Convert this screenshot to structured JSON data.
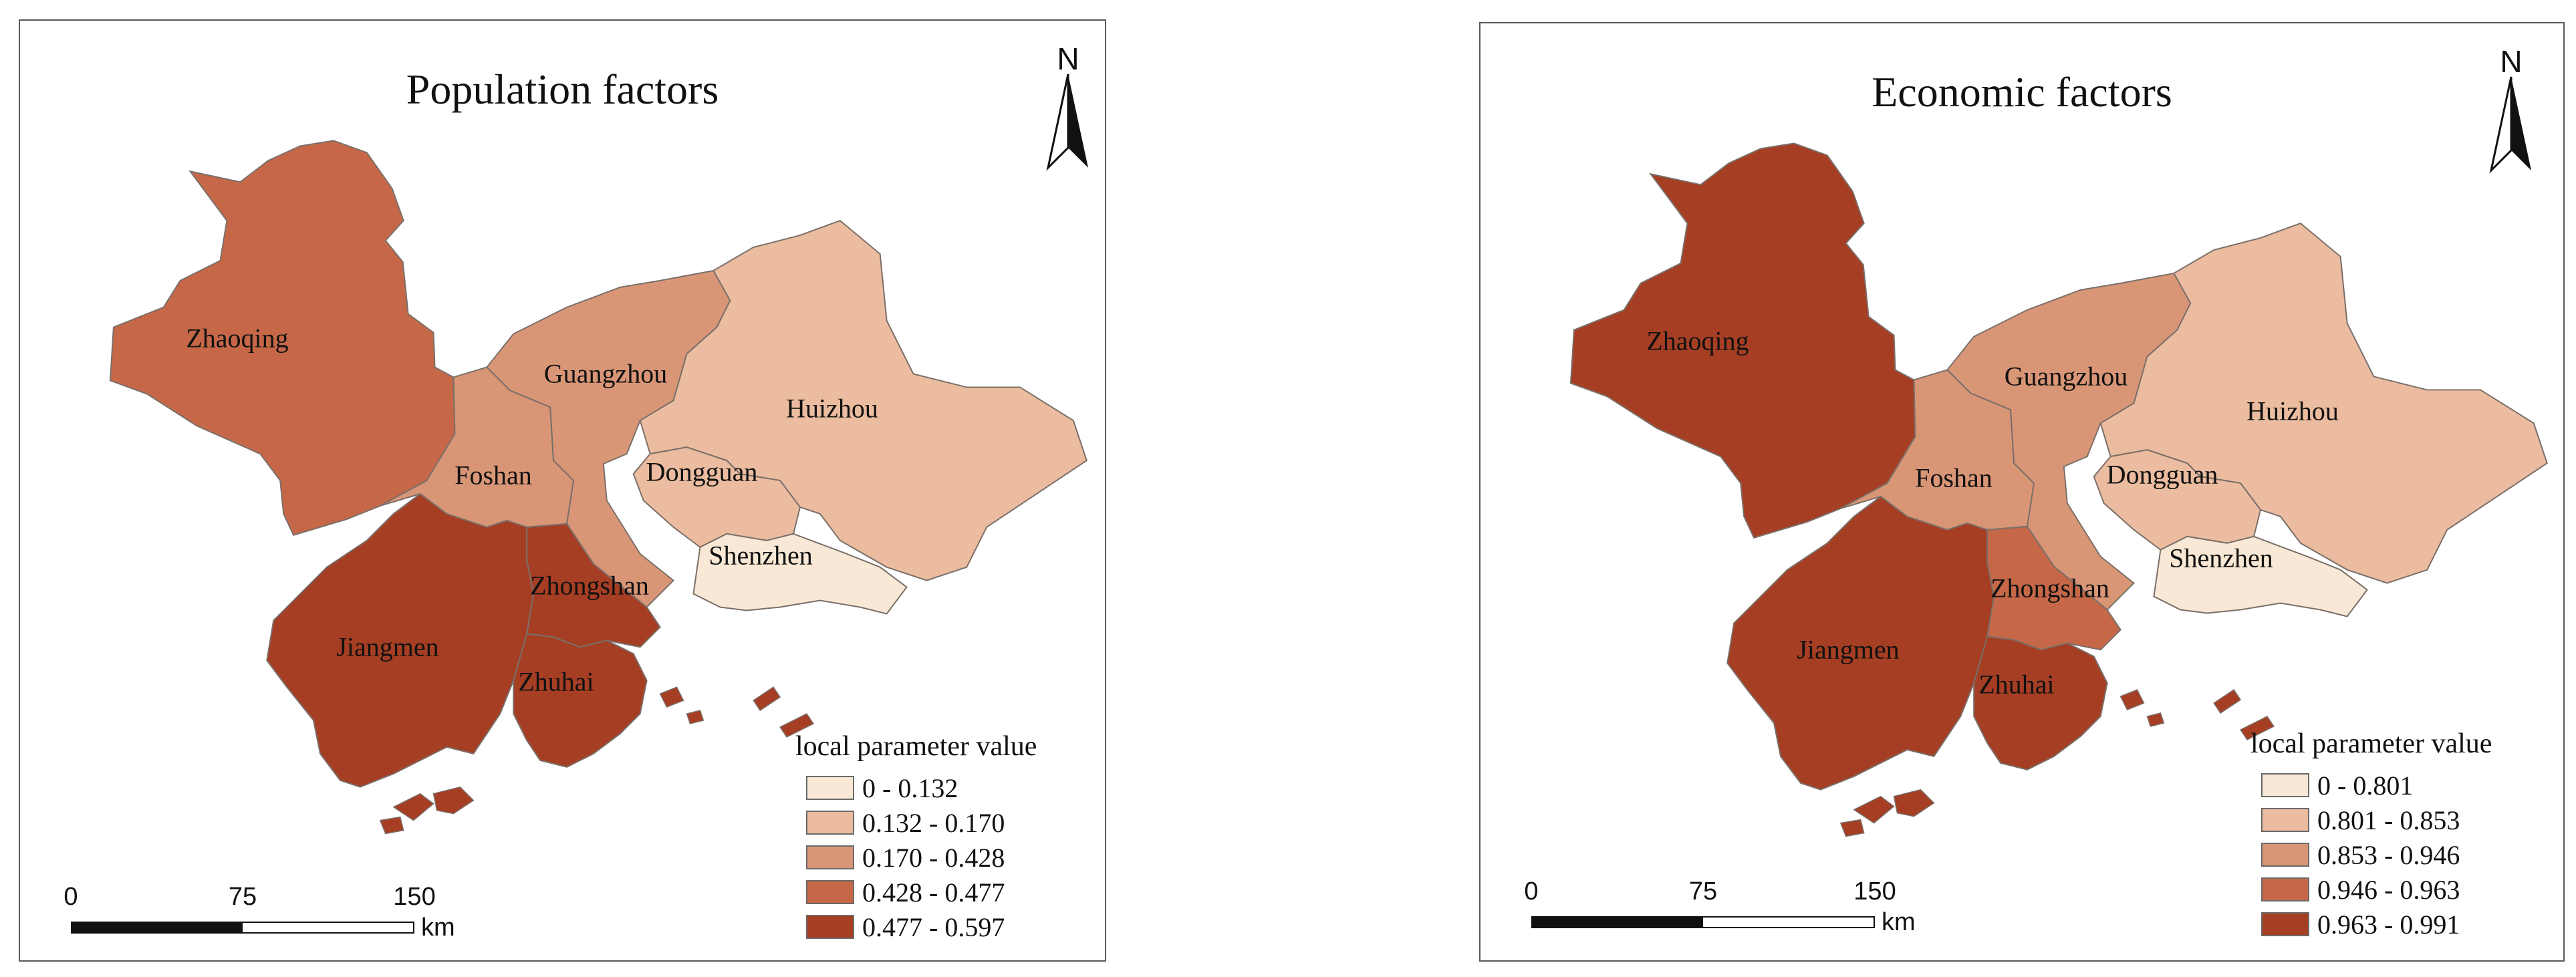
{
  "maps": [
    {
      "id": "left",
      "title": "Population factors",
      "north_label": "N",
      "legend": {
        "title": "local parameter value",
        "classes": [
          {
            "label": "0 - 0.132",
            "color": "#f8e8d5"
          },
          {
            "label": "0.132 - 0.170",
            "color": "#ebbc9f"
          },
          {
            "label": "0.170 - 0.428",
            "color": "#d99676"
          },
          {
            "label": "0.428 - 0.477",
            "color": "#c66848"
          },
          {
            "label": "0.477 - 0.597",
            "color": "#a63e24"
          }
        ]
      },
      "scale": {
        "ticks": [
          "0",
          "75",
          "150"
        ],
        "unit": "km"
      },
      "regions": [
        {
          "name": "Zhaoqing",
          "class_index": 3
        },
        {
          "name": "Guangzhou",
          "class_index": 2
        },
        {
          "name": "Huizhou",
          "class_index": 1
        },
        {
          "name": "Foshan",
          "class_index": 2
        },
        {
          "name": "Dongguan",
          "class_index": 1
        },
        {
          "name": "Shenzhen",
          "class_index": 0
        },
        {
          "name": "Zhongshan",
          "class_index": 4
        },
        {
          "name": "Jiangmen",
          "class_index": 4
        },
        {
          "name": "Zhuhai",
          "class_index": 4
        }
      ]
    },
    {
      "id": "right",
      "title": "Economic factors",
      "north_label": "N",
      "legend": {
        "title": "local parameter value",
        "classes": [
          {
            "label": "0 - 0.801",
            "color": "#f8e8d5"
          },
          {
            "label": "0.801 - 0.853",
            "color": "#ebbc9f"
          },
          {
            "label": "0.853 - 0.946",
            "color": "#d99676"
          },
          {
            "label": "0.946 - 0.963",
            "color": "#c66848"
          },
          {
            "label": "0.963 - 0.991",
            "color": "#a63e24"
          }
        ]
      },
      "scale": {
        "ticks": [
          "0",
          "75",
          "150"
        ],
        "unit": "km"
      },
      "regions": [
        {
          "name": "Zhaoqing",
          "class_index": 4
        },
        {
          "name": "Guangzhou",
          "class_index": 2
        },
        {
          "name": "Huizhou",
          "class_index": 1
        },
        {
          "name": "Foshan",
          "class_index": 2
        },
        {
          "name": "Dongguan",
          "class_index": 1
        },
        {
          "name": "Shenzhen",
          "class_index": 0
        },
        {
          "name": "Zhongshan",
          "class_index": 3
        },
        {
          "name": "Jiangmen",
          "class_index": 4
        },
        {
          "name": "Zhuhai",
          "class_index": 4
        }
      ]
    }
  ]
}
